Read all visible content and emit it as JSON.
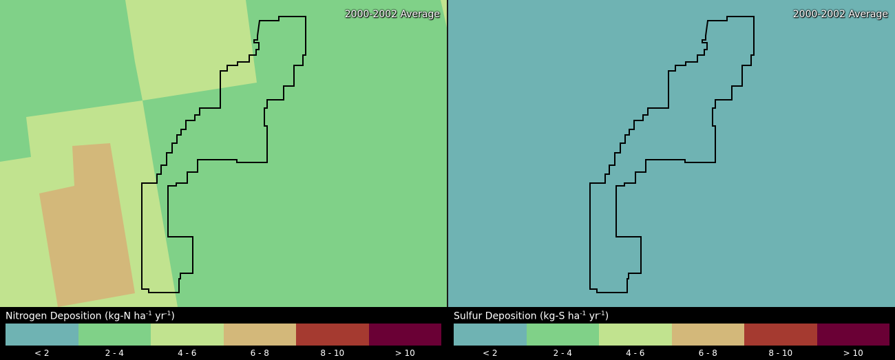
{
  "panels": {
    "left": {
      "period": "2000-2002 Average",
      "legend": {
        "title_pre": "Nitrogen Deposition (kg-N ha",
        "title_sup1": "-1",
        "title_mid": " yr",
        "title_sup2": "-1",
        "title_post": ")"
      }
    },
    "right": {
      "period": "2000-2002 Average",
      "legend": {
        "title_pre": "Sulfur Deposition (kg-S ha",
        "title_sup1": "-1",
        "title_mid": " yr",
        "title_sup2": "-1",
        "title_post": ")"
      }
    }
  },
  "legend_classes": [
    {
      "label": "< 2",
      "color": "#6fb3b3"
    },
    {
      "label": "2 - 4",
      "color": "#80d188"
    },
    {
      "label": "4 - 6",
      "color": "#c1e38f"
    },
    {
      "label": "6 - 8",
      "color": "#d3b87a"
    },
    {
      "label": "8 - 10",
      "color": "#a53a30"
    },
    {
      "label": "> 10",
      "color": "#6a0035"
    }
  ],
  "map_colors": {
    "nitrogen_background": "#80d188",
    "nitrogen_zone_4_6": "#c1e38f",
    "nitrogen_zone_6_8": "#d3b87a",
    "sulfur_background": "#6fb3b3",
    "boundary": "#000000"
  }
}
